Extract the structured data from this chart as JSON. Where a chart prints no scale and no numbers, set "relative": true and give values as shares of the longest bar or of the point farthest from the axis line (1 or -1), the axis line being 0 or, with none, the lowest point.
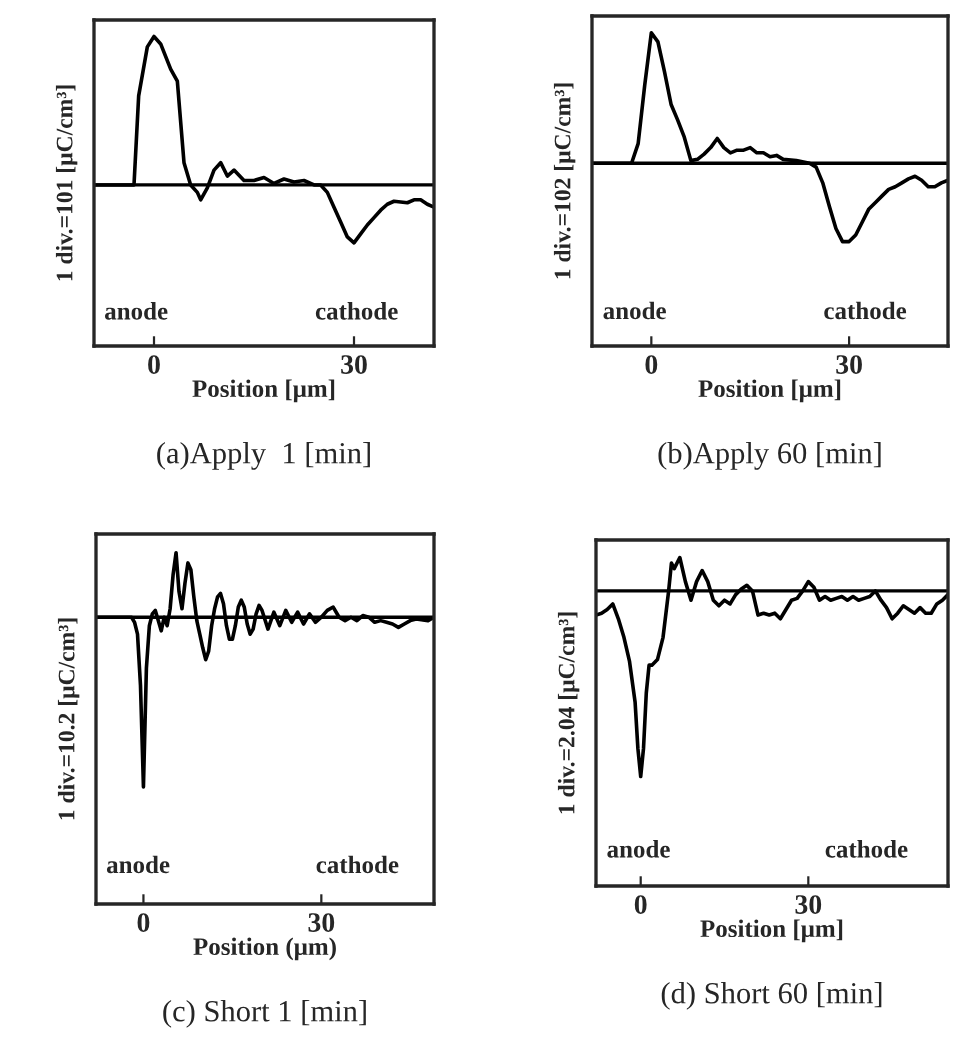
{
  "chart_data": [
    {
      "type": "line",
      "relative": true,
      "title": "(a)Apply  1 [min]",
      "xlabel": "Position [μm]",
      "ylabel": "1 div.=101 [μC/cm³]",
      "color": "#000000",
      "xlim": [
        -9,
        42
      ],
      "xticks": [
        0,
        30
      ],
      "annotations": [
        "anode",
        "cathode"
      ],
      "x": [
        -9,
        -3,
        -2.3,
        -1,
        0,
        1,
        2.5,
        3.5,
        4.5,
        5.5,
        6.5,
        7,
        8,
        9,
        10,
        11,
        12,
        13.5,
        15,
        16.5,
        18,
        19.5,
        21,
        22.5,
        24,
        25,
        26,
        27,
        28,
        29,
        30,
        31,
        32,
        33,
        34,
        35,
        36,
        38,
        39,
        40,
        41,
        42
      ],
      "values": [
        0,
        0,
        0.6,
        0.93,
        1.0,
        0.95,
        0.78,
        0.7,
        0.15,
        0.0,
        -0.05,
        -0.1,
        -0.02,
        0.1,
        0.15,
        0.06,
        0.1,
        0.03,
        0.03,
        0.05,
        0.01,
        0.04,
        0.02,
        0.03,
        0,
        0,
        -0.05,
        -0.15,
        -0.25,
        -0.35,
        -0.39,
        -0.33,
        -0.27,
        -0.22,
        -0.17,
        -0.13,
        -0.11,
        -0.12,
        -0.1,
        -0.1,
        -0.13,
        -0.15
      ]
    },
    {
      "type": "line",
      "relative": true,
      "title": "(b)Apply 60 [min]",
      "xlabel": "Position [μm]",
      "ylabel": "1 div.=102 [μC/cm³]",
      "color": "#000000",
      "xlim": [
        -9,
        45
      ],
      "xticks": [
        0,
        30
      ],
      "annotations": [
        "anode",
        "cathode"
      ],
      "x": [
        -9,
        -3,
        -2,
        -1,
        0,
        1,
        2,
        3,
        4,
        5,
        6,
        7,
        8,
        9,
        10,
        11,
        12,
        13,
        14,
        15,
        16,
        17,
        18,
        19,
        20,
        22,
        24,
        25,
        26,
        27,
        28,
        29,
        30,
        31,
        32,
        33,
        34,
        35,
        36,
        37,
        38,
        39,
        40,
        41,
        42,
        43,
        44,
        45
      ],
      "values": [
        0,
        0,
        0.15,
        0.6,
        1.0,
        0.93,
        0.7,
        0.45,
        0.33,
        0.2,
        0.02,
        0.03,
        0.07,
        0.12,
        0.19,
        0.12,
        0.08,
        0.1,
        0.1,
        0.12,
        0.08,
        0.08,
        0.05,
        0.06,
        0.03,
        0.02,
        0,
        -0.03,
        -0.15,
        -0.33,
        -0.5,
        -0.6,
        -0.6,
        -0.55,
        -0.45,
        -0.35,
        -0.3,
        -0.25,
        -0.2,
        -0.18,
        -0.15,
        -0.12,
        -0.1,
        -0.13,
        -0.18,
        -0.18,
        -0.15,
        -0.13
      ]
    },
    {
      "type": "line",
      "relative": true,
      "title": "(c) Short 1 [min]",
      "xlabel": "Position (μm)",
      "ylabel": "1 div.=10.2 [μC/cm³]",
      "color": "#000000",
      "xlim": [
        -8,
        49
      ],
      "xticks": [
        0,
        30
      ],
      "annotations": [
        "anode",
        "cathode"
      ],
      "x": [
        -8,
        -2,
        -1.5,
        -1,
        -0.5,
        0,
        0.5,
        1,
        1.5,
        2,
        2.5,
        3,
        3.5,
        4,
        4.5,
        5,
        5.5,
        6,
        6.5,
        7,
        7.5,
        8,
        8.5,
        9,
        9.5,
        10,
        10.5,
        11,
        11.5,
        12,
        12.5,
        13,
        13.5,
        14,
        14.5,
        15,
        15.5,
        16,
        16.5,
        17,
        17.5,
        18,
        18.5,
        19,
        19.5,
        20,
        21,
        22,
        23,
        24,
        25,
        26,
        27,
        28,
        29,
        30,
        31,
        32,
        33,
        34,
        35,
        36,
        37,
        38,
        39,
        40,
        41,
        42,
        43,
        44,
        45,
        46,
        48,
        49
      ],
      "values": [
        0,
        0,
        -0.03,
        -0.1,
        -0.4,
        -1.0,
        -0.3,
        -0.05,
        0.02,
        0.04,
        -0.02,
        -0.08,
        0.0,
        -0.05,
        0.05,
        0.25,
        0.38,
        0.15,
        0.05,
        0.2,
        0.32,
        0.28,
        0.12,
        -0.02,
        -0.1,
        -0.18,
        -0.25,
        -0.2,
        -0.05,
        0.05,
        0.12,
        0.14,
        0.08,
        -0.05,
        -0.13,
        -0.13,
        -0.05,
        0.06,
        0.1,
        0.06,
        -0.04,
        -0.1,
        -0.07,
        0.02,
        0.07,
        0.04,
        -0.07,
        0.03,
        -0.05,
        0.04,
        -0.03,
        0.03,
        -0.04,
        0.02,
        -0.03,
        0.0,
        0.04,
        0.06,
        0.0,
        -0.02,
        0.0,
        -0.02,
        0.01,
        0.0,
        -0.03,
        -0.02,
        -0.03,
        -0.04,
        -0.06,
        -0.04,
        -0.02,
        -0.01,
        -0.02,
        0
      ]
    },
    {
      "type": "line",
      "relative": true,
      "title": "(d) Short 60 [min]",
      "xlabel": "Position [μm]",
      "ylabel": "1 div.=2.04 [μC/cm³]",
      "color": "#000000",
      "xlim": [
        -8,
        55
      ],
      "xticks": [
        0,
        30
      ],
      "annotations": [
        "anode",
        "cathode"
      ],
      "x": [
        -8,
        -7,
        -6,
        -5,
        -4,
        -3,
        -2,
        -1,
        -0.5,
        0,
        0.5,
        1,
        1.5,
        2,
        3,
        4,
        5,
        5.5,
        6,
        7,
        8,
        9,
        10,
        11,
        12,
        13,
        14,
        15,
        16,
        17,
        18,
        19,
        20,
        21,
        22,
        23,
        24,
        25,
        26,
        27,
        28,
        29,
        30,
        31,
        32,
        33,
        34,
        35,
        36,
        37,
        38,
        39,
        40,
        41,
        42,
        43,
        44,
        45,
        46,
        47,
        48,
        49,
        50,
        51,
        52,
        53,
        54,
        55
      ],
      "values": [
        -0.13,
        -0.12,
        -0.1,
        -0.07,
        -0.15,
        -0.25,
        -0.38,
        -0.6,
        -0.85,
        -1.0,
        -0.85,
        -0.55,
        -0.4,
        -0.4,
        -0.37,
        -0.25,
        0.0,
        0.15,
        0.12,
        0.18,
        0.05,
        -0.05,
        0.05,
        0.11,
        0.05,
        -0.05,
        -0.08,
        -0.05,
        -0.07,
        -0.02,
        0.01,
        0.03,
        0.0,
        -0.13,
        -0.12,
        -0.13,
        -0.12,
        -0.15,
        -0.1,
        -0.05,
        -0.04,
        0.0,
        0.05,
        0.02,
        -0.05,
        -0.03,
        -0.05,
        -0.04,
        -0.03,
        -0.05,
        -0.03,
        -0.05,
        -0.04,
        -0.03,
        0.0,
        -0.05,
        -0.09,
        -0.15,
        -0.12,
        -0.08,
        -0.1,
        -0.12,
        -0.09,
        -0.12,
        -0.12,
        -0.07,
        -0.05,
        -0.02
      ]
    }
  ]
}
